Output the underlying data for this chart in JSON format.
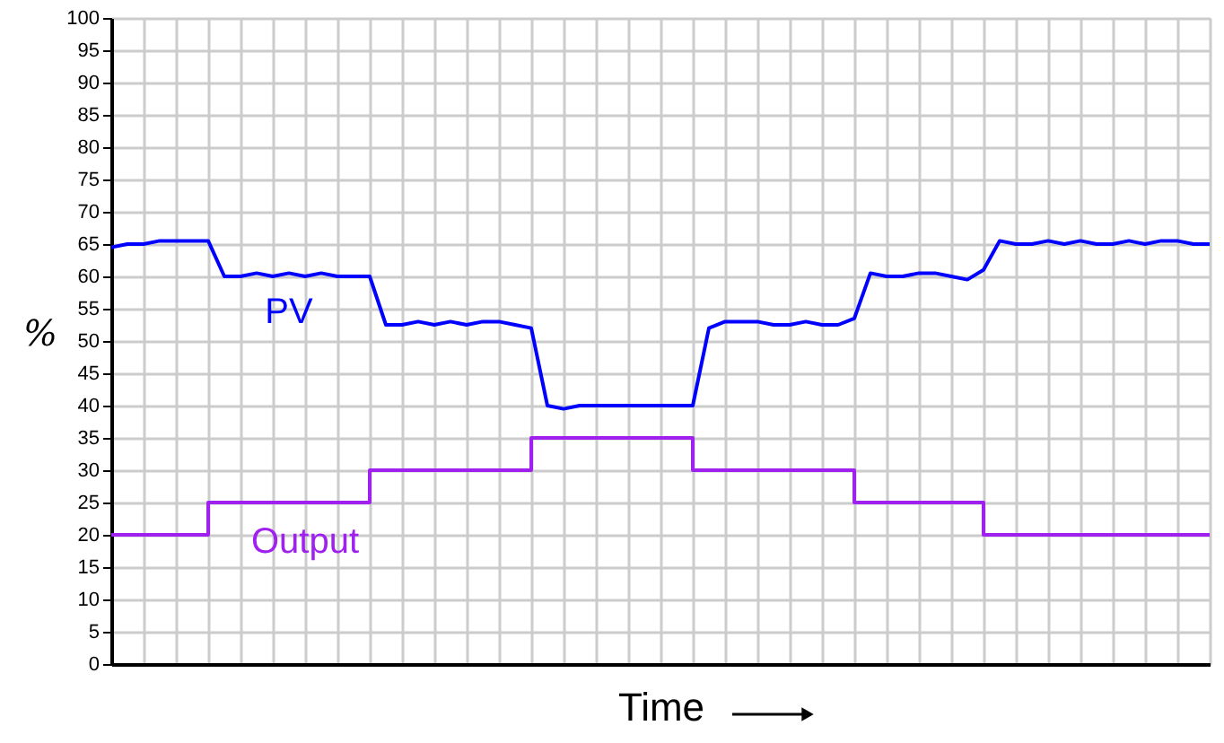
{
  "chart_data": {
    "type": "line",
    "xlabel": "Time",
    "ylabel": "%",
    "categories": [
      null,
      null,
      null,
      null,
      null,
      null,
      null,
      null,
      null,
      null,
      null,
      null,
      null,
      null,
      null,
      null,
      null,
      null,
      null,
      null,
      null,
      null,
      null,
      null,
      null,
      null,
      null,
      null,
      null,
      null,
      null,
      null,
      null,
      null,
      null,
      null,
      null,
      null,
      null,
      null,
      null,
      null,
      null,
      null,
      null,
      null,
      null,
      null,
      null,
      null,
      null,
      null,
      null,
      null,
      null,
      null,
      null,
      null,
      null,
      null,
      null,
      null,
      null,
      null,
      null,
      null,
      null,
      null,
      null
    ],
    "series": [
      {
        "name": "PV",
        "color": "#0000ff",
        "values": [
          64.5,
          65,
          65,
          65.5,
          65.5,
          65.5,
          65.5,
          60,
          60,
          60.5,
          60,
          60.5,
          60,
          60.5,
          60,
          60,
          60,
          52.5,
          52.5,
          53,
          52.5,
          53,
          52.5,
          53,
          53,
          52.5,
          52,
          40,
          39.5,
          40,
          40,
          40,
          40,
          40,
          40,
          40,
          40,
          52,
          53,
          53,
          53,
          52.5,
          52.5,
          53,
          52.5,
          52.5,
          53.5,
          60.5,
          60,
          60,
          60.5,
          60.5,
          60,
          59.5,
          61,
          65.5,
          65,
          65,
          65.5,
          65,
          65.5,
          65,
          65,
          65.5,
          65,
          65.5,
          65.5,
          65,
          65
        ]
      },
      {
        "name": "Output",
        "color": "#a020f0",
        "type": "step",
        "values": [
          20,
          20,
          20,
          20,
          20,
          20,
          25,
          25,
          25,
          25,
          25,
          25,
          25,
          25,
          25,
          25,
          30,
          30,
          30,
          30,
          30,
          30,
          30,
          30,
          30,
          30,
          35,
          35,
          35,
          35,
          35,
          35,
          35,
          35,
          35,
          35,
          30,
          30,
          30,
          30,
          30,
          30,
          30,
          30,
          30,
          30,
          25,
          25,
          25,
          25,
          25,
          25,
          25,
          25,
          20,
          20,
          20,
          20,
          20,
          20,
          20,
          20,
          20,
          20,
          20,
          20,
          20,
          20,
          20
        ]
      }
    ],
    "ylim": [
      0,
      100
    ],
    "yticks": [
      0,
      5,
      10,
      15,
      20,
      25,
      30,
      35,
      40,
      45,
      50,
      55,
      60,
      65,
      70,
      75,
      80,
      85,
      90,
      95,
      100
    ],
    "grid": true,
    "tick_labels": "y"
  }
}
